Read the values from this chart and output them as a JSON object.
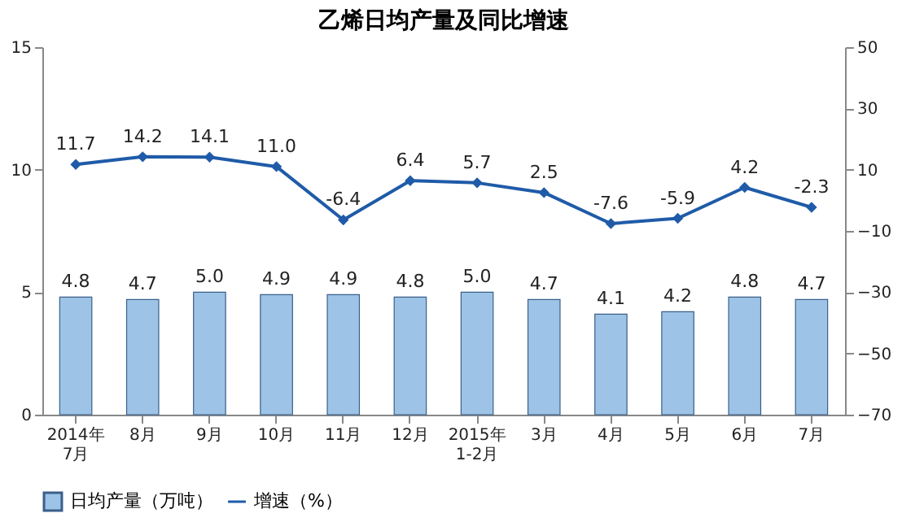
{
  "chart_data": {
    "type": "bar",
    "title": "乙烯日均产量及同比增速",
    "categories": [
      "2014年\n7月",
      "8月",
      "9月",
      "10月",
      "11月",
      "12月",
      "2015年\n1-2月",
      "3月",
      "4月",
      "5月",
      "6月",
      "7月"
    ],
    "series": [
      {
        "name": "日均产量（万吨）",
        "color": "#9dc3e6",
        "values": [
          4.8,
          4.7,
          5.0,
          4.9,
          4.9,
          4.8,
          5.0,
          4.7,
          4.1,
          4.2,
          4.8,
          4.7
        ],
        "value_labels": [
          "4.8",
          "4.7",
          "5.0",
          "4.9",
          "4.9",
          "4.8",
          "5.0",
          "4.7",
          "4.1",
          "4.2",
          "4.8",
          "4.7"
        ]
      },
      {
        "name": "增速（%）",
        "type": "line",
        "axis": "y2",
        "color": "#1f5ba8",
        "values": [
          11.7,
          14.2,
          14.1,
          11.0,
          -6.4,
          6.4,
          5.7,
          2.5,
          -7.6,
          -5.9,
          4.2,
          -2.3
        ],
        "value_labels": [
          "11.7",
          "14.2",
          "14.1",
          "11.0",
          "-6.4",
          "6.4",
          "5.7",
          "2.5",
          "-7.6",
          "-5.9",
          "4.2",
          "-2.3"
        ]
      }
    ],
    "ylim": [
      0,
      15
    ],
    "yticks": [
      0,
      5,
      10,
      15
    ],
    "y2lim": [
      -70,
      50
    ],
    "y2ticks": [
      -70,
      -50,
      -30,
      -10,
      10,
      30,
      50
    ],
    "legend": "bottom",
    "grid": false,
    "marker": "diamond",
    "line_style": "solid"
  }
}
